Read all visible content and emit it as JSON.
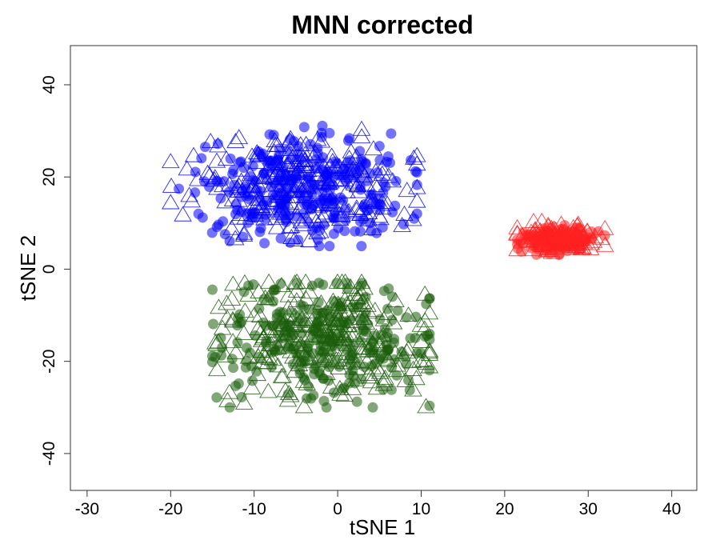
{
  "chart_data": {
    "type": "scatter",
    "title": "MNN corrected",
    "xlabel": "tSNE 1",
    "ylabel": "tSNE 2",
    "xlim": [
      -32,
      43
    ],
    "ylim": [
      -48,
      48.5
    ],
    "xticks": [
      -30,
      -20,
      -10,
      0,
      10,
      20,
      30,
      40
    ],
    "yticks": [
      -40,
      -20,
      0,
      20,
      40
    ],
    "grid": false,
    "legend": "none",
    "marker_types": [
      "circle",
      "triangle"
    ],
    "clusters": [
      {
        "color": "#0000ff",
        "center": [
          -4,
          17.5
        ],
        "spread": [
          6.5,
          5.5
        ],
        "x_range": [
          -20,
          9.5
        ],
        "y_range": [
          5,
          32
        ]
      },
      {
        "color": "#1a5c0a",
        "center": [
          -1,
          -15.5
        ],
        "spread": [
          6.5,
          6.5
        ],
        "x_range": [
          -15,
          11
        ],
        "y_range": [
          -30,
          -3
        ]
      },
      {
        "color": "#ff2020",
        "center": [
          26.5,
          6.5
        ],
        "spread": [
          2.5,
          1.5
        ],
        "x_range": [
          21.5,
          32
        ],
        "y_range": [
          3,
          11
        ]
      }
    ]
  }
}
